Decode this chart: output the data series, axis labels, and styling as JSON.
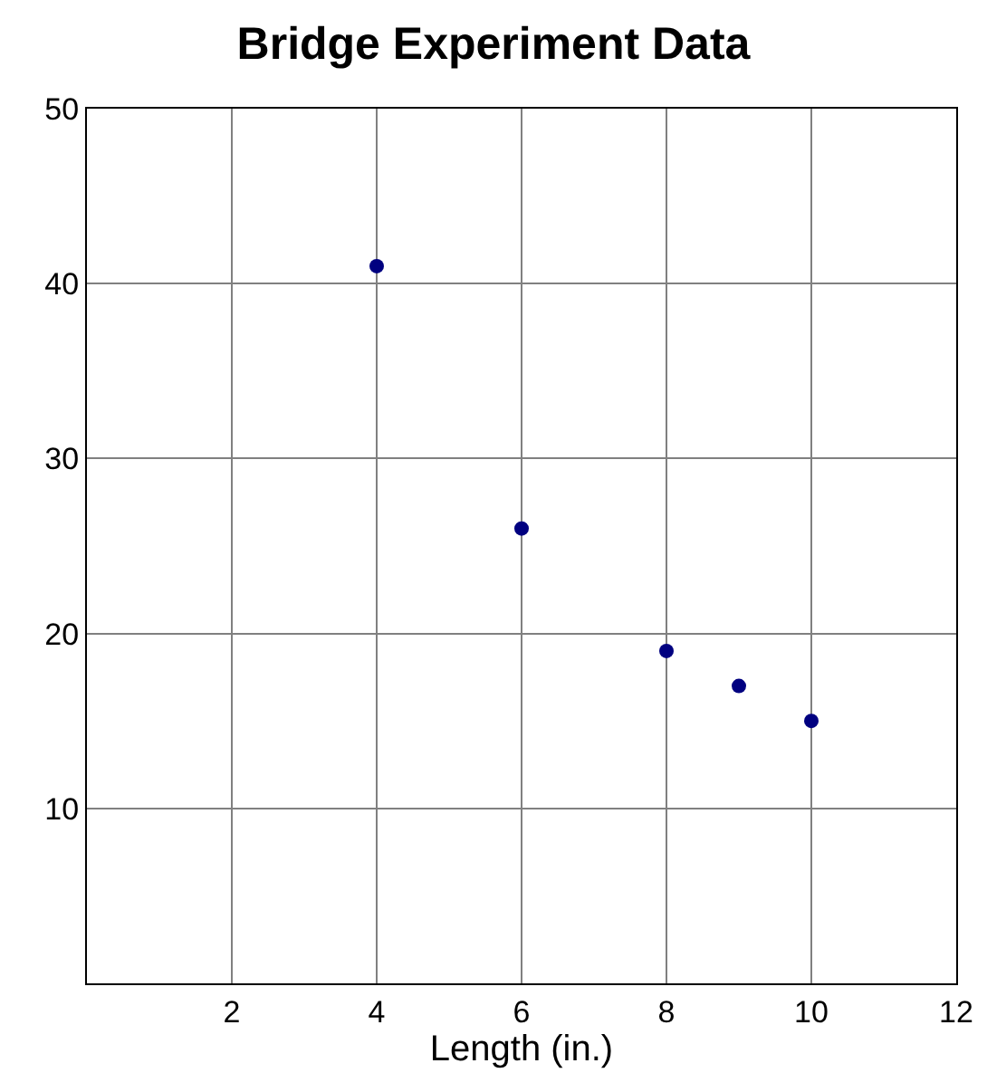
{
  "chart_data": {
    "type": "scatter",
    "title": "Bridge Experiment Data",
    "xlabel": "Length (in.)",
    "x": [
      4,
      6,
      8,
      9,
      10
    ],
    "series": [
      {
        "color": "#000080",
        "values": [
          41,
          26,
          19,
          17,
          15
        ]
      }
    ],
    "xlim": [
      0,
      12
    ],
    "xticks": [
      2,
      4,
      6,
      8,
      10,
      12
    ],
    "ylim": [
      0,
      50
    ],
    "yticks": [
      10,
      20,
      30,
      40,
      50
    ],
    "grid": true,
    "marker": "circle"
  }
}
